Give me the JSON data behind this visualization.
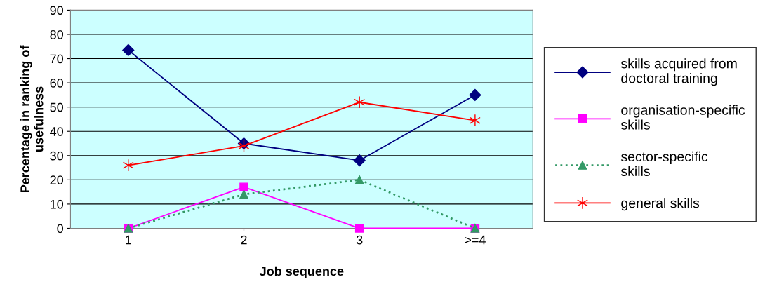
{
  "chart_data": {
    "type": "line",
    "xlabel": "Job sequence",
    "ylabel": "Percentage in ranking of usefulness",
    "categories": [
      "1",
      "2",
      "3",
      ">=4"
    ],
    "series": [
      {
        "name": "skills acquired from doctoral training",
        "color": "#000080",
        "values": [
          73.5,
          35,
          28,
          55
        ],
        "marker": "diamond",
        "line_style": "solid"
      },
      {
        "name": "organisation-specific skills",
        "color": "#ff00ff",
        "values": [
          0,
          17,
          0,
          0
        ],
        "marker": "square",
        "line_style": "solid"
      },
      {
        "name": "sector-specific skills",
        "color": "#339966",
        "values": [
          0,
          14,
          20,
          0
        ],
        "marker": "triangle",
        "line_style": "dotted"
      },
      {
        "name": "general skills",
        "color": "#ff0000",
        "values": [
          26,
          34,
          52,
          44.5
        ],
        "marker": "cross",
        "line_style": "solid"
      }
    ],
    "ylim": [
      0,
      90
    ],
    "yticks": [
      0,
      10,
      20,
      30,
      40,
      50,
      60,
      70,
      80,
      90
    ],
    "grid": "y",
    "legend": "right"
  }
}
